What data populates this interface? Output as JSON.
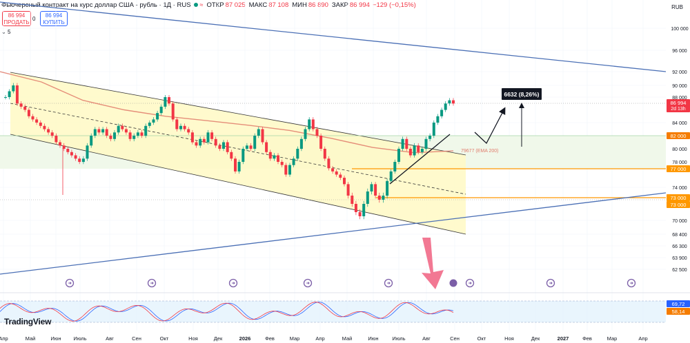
{
  "header": {
    "title": "Фьючерсный контракт на курс доллар США - рубль · 1Д · RUS",
    "open_label": "ОТКР",
    "open": "87 025",
    "high_label": "МАКС",
    "high": "87 108",
    "low_label": "МИН",
    "low": "86 890",
    "close_label": "ЗАКР",
    "close": "86 994",
    "change": "−129 (−0,15%)"
  },
  "trade": {
    "sell_price": "86 994",
    "sell_label": "ПРОДАТЬ",
    "spread": "0",
    "buy_price": "86 994",
    "buy_label": "КУПИТЬ"
  },
  "indicator_toggle": "5",
  "currency": "RUB",
  "logo": "TradingView",
  "colors": {
    "up": "#089981",
    "down": "#f23645",
    "ema": "#e07a6a",
    "trend": "#4a6fb5",
    "channel_fill": "#fff9c4",
    "zone_fill": "#eef7e8",
    "level": "#ff9800",
    "stoch_k": "#2962ff",
    "stoch_d": "#f23645"
  },
  "annotations": {
    "move_label": "6632 (8,26%)",
    "ema_label": "79677 (EMA 200)"
  },
  "price_tags": {
    "current": "86 994",
    "countdown": "2d 13h",
    "level_82": "82 000",
    "level_77": "77 000",
    "level_73a": "73 000",
    "level_73b": "73 000",
    "osc_k": "69,72",
    "osc_d": "58,14"
  },
  "chart_data": {
    "type": "candlestick",
    "x_ticks": [
      "Апр",
      "Май",
      "Июн",
      "Июль",
      "Авг",
      "Сен",
      "Окт",
      "Ноя",
      "Дек",
      "2026",
      "Фев",
      "Мар",
      "Апр",
      "Май",
      "Июн",
      "Июль",
      "Авг",
      "Сен",
      "Окт",
      "Ноя",
      "Дек",
      "2027",
      "Фев",
      "Мар",
      "Апр"
    ],
    "y_ticks": [
      100000,
      96000,
      92000,
      90000,
      88000,
      84000,
      80000,
      78000,
      74000,
      70000,
      68400,
      66300,
      63900,
      62500
    ],
    "y_tick_labels": [
      "100 000",
      "96 000",
      "92 000",
      "90 000",
      "88 000",
      "84 000",
      "80 000",
      "78 000",
      "74 000",
      "70 000",
      "68 400",
      "66 300",
      "63 900",
      "62 500"
    ],
    "ema200": 79677,
    "last_close": 86994,
    "levels": [
      82000,
      77000,
      73000
    ],
    "move_points": 6632,
    "move_percent": 8.26,
    "series": [
      {
        "values": [
          88000,
          89000,
          90000,
          87000,
          86500,
          86000,
          85000,
          84500,
          84000,
          83500,
          83000,
          82500,
          82000,
          81000,
          80500,
          80000,
          79500,
          79000,
          78500,
          78000,
          78500,
          80500,
          82000,
          83000,
          82500,
          83000,
          82000,
          81500,
          82500,
          83500,
          83000,
          82500,
          81500,
          82000,
          82500,
          82000,
          83500,
          84000,
          84500,
          85500,
          86500,
          88000,
          87000,
          84500,
          83000,
          83500,
          83000,
          82500,
          81000,
          80500,
          81500,
          81000,
          82500,
          81500,
          80500,
          80000,
          81000,
          79500,
          78500,
          76500,
          78000,
          80000,
          80500,
          80000,
          82000,
          83000,
          81000,
          79500,
          78500,
          79000,
          78000,
          77500,
          76000,
          77500,
          78500,
          80000,
          81500,
          83000,
          84500,
          83000,
          82000,
          80000,
          78500,
          77000,
          76500,
          76000,
          75500,
          74500,
          73000,
          72000,
          71000,
          70500,
          72000,
          73500,
          74500,
          73000,
          72500,
          73000,
          75000,
          76500,
          78000,
          80000,
          81500,
          80000,
          79000,
          80500,
          79500,
          80000,
          81500,
          82000,
          84000,
          85000,
          86000,
          87000,
          87500,
          86994
        ]
      }
    ],
    "oscillator": {
      "name": "Stochastic",
      "k": 69.72,
      "d": 58.14,
      "bands": [
        80,
        20
      ]
    }
  }
}
